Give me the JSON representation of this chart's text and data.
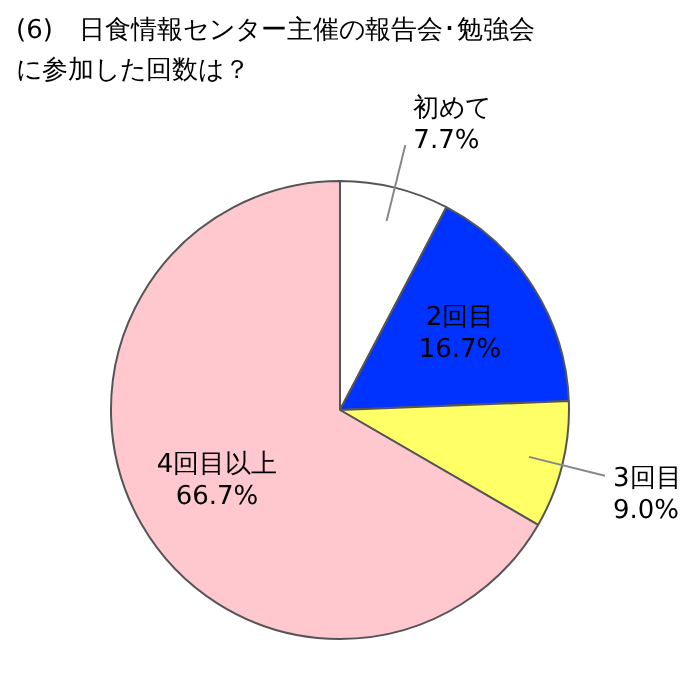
{
  "chart_data": {
    "type": "pie",
    "title": "(6)　日食情報センター主催の報告会･勉強会に参加した回数は？",
    "categories": [
      "初めて",
      "2回目",
      "3回目",
      "4回目以上"
    ],
    "values": [
      7.7,
      16.7,
      9.0,
      66.7
    ],
    "value_labels": [
      "7.7%",
      "16.7%",
      "9.0%",
      "66.7%"
    ],
    "colors": [
      "#ffffff",
      "#0033ff",
      "#ffff66",
      "#ffc7ce"
    ],
    "data_labels": true,
    "legend": false
  }
}
